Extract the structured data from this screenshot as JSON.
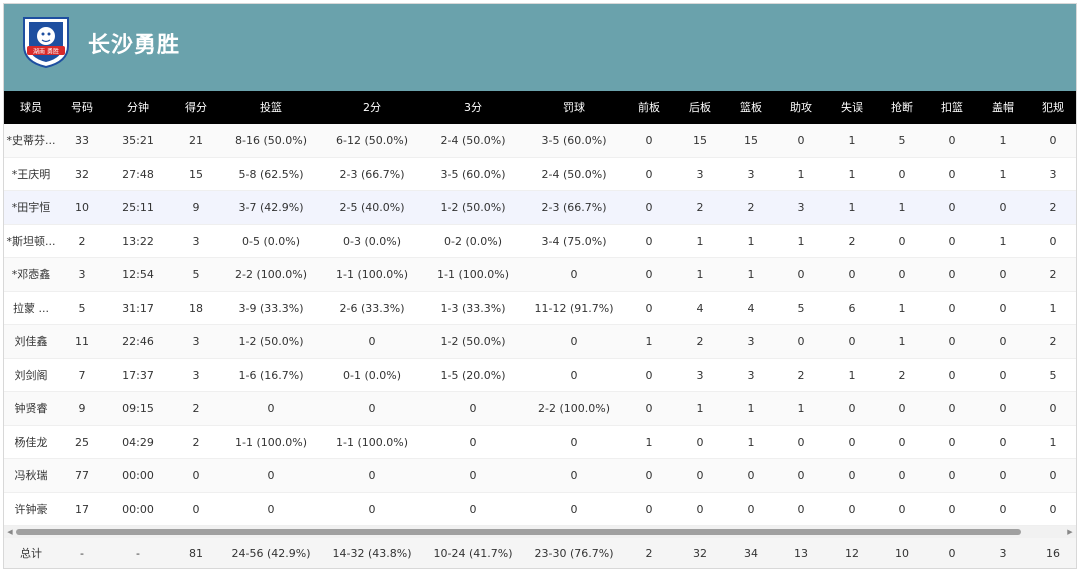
{
  "team": {
    "name": "长沙勇胜",
    "logo_text": "湖南 勇胜",
    "header_color": "#6aa2ac"
  },
  "columns": [
    "球员",
    "号码",
    "分钟",
    "得分",
    "投篮",
    "2分",
    "3分",
    "罚球",
    "前板",
    "后板",
    "篮板",
    "助攻",
    "失误",
    "抢断",
    "扣篮",
    "盖帽",
    "犯规"
  ],
  "rows": [
    [
      "*史蒂芬...",
      "33",
      "35:21",
      "21",
      "8-16 (50.0%)",
      "6-12 (50.0%)",
      "2-4 (50.0%)",
      "3-5 (60.0%)",
      "0",
      "15",
      "15",
      "0",
      "1",
      "5",
      "0",
      "1",
      "0"
    ],
    [
      "*王庆明",
      "32",
      "27:48",
      "15",
      "5-8 (62.5%)",
      "2-3 (66.7%)",
      "3-5 (60.0%)",
      "2-4 (50.0%)",
      "0",
      "3",
      "3",
      "1",
      "1",
      "0",
      "0",
      "1",
      "3"
    ],
    [
      "*田宇恒",
      "10",
      "25:11",
      "9",
      "3-7 (42.9%)",
      "2-5 (40.0%)",
      "1-2 (50.0%)",
      "2-3 (66.7%)",
      "0",
      "2",
      "2",
      "3",
      "1",
      "1",
      "0",
      "0",
      "2"
    ],
    [
      "*斯坦顿...",
      "2",
      "13:22",
      "3",
      "0-5 (0.0%)",
      "0-3 (0.0%)",
      "0-2 (0.0%)",
      "3-4 (75.0%)",
      "0",
      "1",
      "1",
      "1",
      "2",
      "0",
      "0",
      "1",
      "0"
    ],
    [
      "*邓悫鑫",
      "3",
      "12:54",
      "5",
      "2-2 (100.0%)",
      "1-1 (100.0%)",
      "1-1 (100.0%)",
      "0",
      "0",
      "1",
      "1",
      "0",
      "0",
      "0",
      "0",
      "0",
      "2"
    ],
    [
      "拉蒙 ...",
      "5",
      "31:17",
      "18",
      "3-9 (33.3%)",
      "2-6 (33.3%)",
      "1-3 (33.3%)",
      "11-12 (91.7%)",
      "0",
      "4",
      "4",
      "5",
      "6",
      "1",
      "0",
      "0",
      "1"
    ],
    [
      "刘佳鑫",
      "11",
      "22:46",
      "3",
      "1-2 (50.0%)",
      "0",
      "1-2 (50.0%)",
      "0",
      "1",
      "2",
      "3",
      "0",
      "0",
      "1",
      "0",
      "0",
      "2"
    ],
    [
      "刘剑阁",
      "7",
      "17:37",
      "3",
      "1-6 (16.7%)",
      "0-1 (0.0%)",
      "1-5 (20.0%)",
      "0",
      "0",
      "3",
      "3",
      "2",
      "1",
      "2",
      "0",
      "0",
      "5"
    ],
    [
      "钟贤睿",
      "9",
      "09:15",
      "2",
      "0",
      "0",
      "0",
      "2-2 (100.0%)",
      "0",
      "1",
      "1",
      "1",
      "0",
      "0",
      "0",
      "0",
      "0"
    ],
    [
      "杨佳龙",
      "25",
      "04:29",
      "2",
      "1-1 (100.0%)",
      "1-1 (100.0%)",
      "0",
      "0",
      "1",
      "0",
      "1",
      "0",
      "0",
      "0",
      "0",
      "0",
      "1"
    ],
    [
      "冯秋瑞",
      "77",
      "00:00",
      "0",
      "0",
      "0",
      "0",
      "0",
      "0",
      "0",
      "0",
      "0",
      "0",
      "0",
      "0",
      "0",
      "0"
    ],
    [
      "许钟豪",
      "17",
      "00:00",
      "0",
      "0",
      "0",
      "0",
      "0",
      "0",
      "0",
      "0",
      "0",
      "0",
      "0",
      "0",
      "0",
      "0"
    ]
  ],
  "totals": [
    "总计",
    "-",
    "-",
    "81",
    "24-56 (42.9%)",
    "14-32 (43.8%)",
    "10-24 (41.7%)",
    "23-30 (76.7%)",
    "2",
    "32",
    "34",
    "13",
    "12",
    "10",
    "0",
    "3",
    "16"
  ]
}
